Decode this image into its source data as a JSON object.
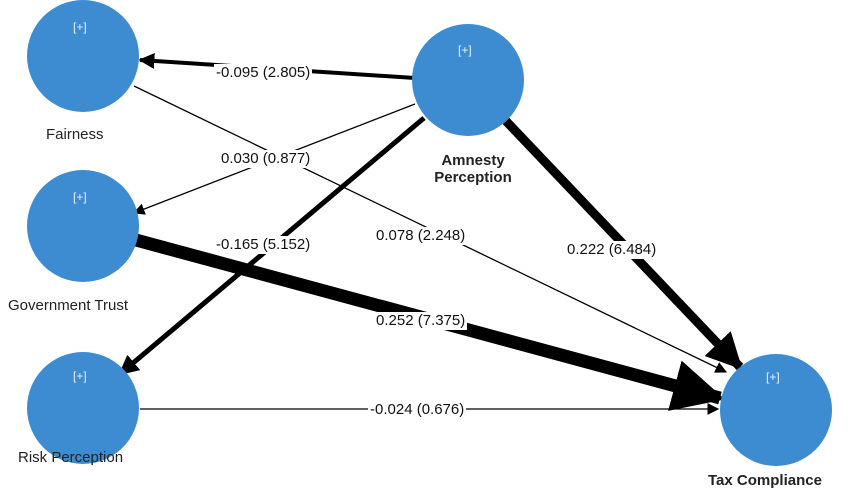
{
  "colors": {
    "node_fill": "#3d8bd0",
    "edge": "#000000",
    "plus_text": "#e8f2fb"
  },
  "nodes": {
    "fairness": {
      "label": "Fairness",
      "expand": "[+]"
    },
    "government_trust": {
      "label": "Government Trust",
      "expand": "[+]"
    },
    "risk_perception": {
      "label": "Risk Perception",
      "expand": "[+]"
    },
    "amnesty_perception": {
      "label_line1": "Amnesty",
      "label_line2": "Perception",
      "expand": "[+]"
    },
    "tax_compliance": {
      "label": "Tax Compliance",
      "expand": "[+]"
    }
  },
  "paths": [
    {
      "id": "amnesty_fairness",
      "from": "amnesty_perception",
      "to": "fairness",
      "coefficient": "-0.095",
      "t_value": "(2.805)",
      "label": "-0.095 (2.805)"
    },
    {
      "id": "amnesty_government",
      "from": "amnesty_perception",
      "to": "government_trust",
      "coefficient": "0.030",
      "t_value": "(0.877)",
      "label": "0.030 (0.877)"
    },
    {
      "id": "amnesty_risk",
      "from": "amnesty_perception",
      "to": "risk_perception",
      "coefficient": "-0.165",
      "t_value": "(5.152)",
      "label": "-0.165 (5.152)"
    },
    {
      "id": "fairness_tax",
      "from": "fairness",
      "to": "tax_compliance",
      "coefficient": "0.078",
      "t_value": "(2.248)",
      "label": "0.078 (2.248)"
    },
    {
      "id": "amnesty_tax",
      "from": "amnesty_perception",
      "to": "tax_compliance",
      "coefficient": "0.222",
      "t_value": "(6.484)",
      "label": "0.222 (6.484)"
    },
    {
      "id": "government_tax",
      "from": "government_trust",
      "to": "tax_compliance",
      "coefficient": "0.252",
      "t_value": "(7.375)",
      "label": "0.252 (7.375)"
    },
    {
      "id": "risk_tax",
      "from": "risk_perception",
      "to": "tax_compliance",
      "coefficient": "-0.024",
      "t_value": "(0.676)",
      "label": "-0.024 (0.676)"
    }
  ]
}
